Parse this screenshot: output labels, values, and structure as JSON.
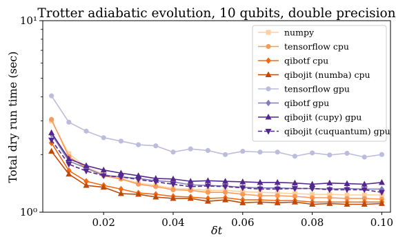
{
  "chart_data": {
    "type": "line",
    "title": "Trotter adiabatic evolution, 10 qubits, double precision",
    "xlabel": "δt",
    "ylabel": "Total dry run time (sec)",
    "xlim": [
      0.0025,
      0.1025
    ],
    "ylim": [
      1,
      10
    ],
    "yscale": "log",
    "grid": false,
    "legend_position": "top-right",
    "x_ticks": [
      0.02,
      0.04,
      0.06,
      0.08,
      0.1
    ],
    "x_tick_labels": [
      "0.02",
      "0.04",
      "0.06",
      "0.08",
      "0.10"
    ],
    "y_ticks": [
      1,
      10
    ],
    "y_tick_labels": [
      "10⁰",
      "10¹"
    ],
    "x": [
      0.005,
      0.01,
      0.015,
      0.02,
      0.025,
      0.03,
      0.035,
      0.04,
      0.045,
      0.05,
      0.055,
      0.06,
      0.065,
      0.07,
      0.075,
      0.08,
      0.085,
      0.09,
      0.095,
      0.1
    ],
    "series": [
      {
        "name": "numpy",
        "color": "#fdd0a2",
        "marker": "square",
        "dash": "solid",
        "values": [
          3.0,
          2.02,
          1.72,
          1.58,
          1.5,
          1.42,
          1.38,
          1.33,
          1.32,
          1.3,
          1.3,
          1.28,
          1.27,
          1.26,
          1.25,
          1.24,
          1.24,
          1.23,
          1.23,
          1.23
        ]
      },
      {
        "name": "tensorflow cpu",
        "color": "#fb9a58",
        "marker": "circle",
        "dash": "solid",
        "values": [
          3.05,
          1.95,
          1.7,
          1.55,
          1.49,
          1.4,
          1.36,
          1.31,
          1.3,
          1.27,
          1.27,
          1.24,
          1.22,
          1.22,
          1.21,
          1.19,
          1.19,
          1.18,
          1.18,
          1.17
        ]
      },
      {
        "name": "qibotf cpu",
        "color": "#f16913",
        "marker": "diamond",
        "dash": "solid",
        "values": [
          2.3,
          1.65,
          1.45,
          1.38,
          1.32,
          1.26,
          1.24,
          1.21,
          1.2,
          1.18,
          1.19,
          1.16,
          1.16,
          1.15,
          1.15,
          1.13,
          1.13,
          1.13,
          1.13,
          1.13
        ]
      },
      {
        "name": "qibojit (numba) cpu",
        "color": "#c14905",
        "marker": "triangle-up",
        "dash": "solid",
        "values": [
          2.08,
          1.58,
          1.38,
          1.35,
          1.25,
          1.24,
          1.2,
          1.18,
          1.18,
          1.14,
          1.16,
          1.12,
          1.13,
          1.12,
          1.13,
          1.1,
          1.11,
          1.1,
          1.1,
          1.11
        ]
      },
      {
        "name": "tensorflow gpu",
        "color": "#bcbddc",
        "marker": "circle",
        "dash": "solid",
        "values": [
          4.05,
          2.95,
          2.65,
          2.45,
          2.35,
          2.25,
          2.22,
          2.06,
          2.14,
          2.1,
          2.0,
          2.08,
          2.06,
          2.06,
          1.96,
          2.04,
          1.99,
          2.03,
          1.94,
          2.0
        ]
      },
      {
        "name": "qibotf gpu",
        "color": "#807dba",
        "marker": "diamond",
        "dash": "solid",
        "values": [
          2.55,
          1.85,
          1.7,
          1.56,
          1.53,
          1.5,
          1.46,
          1.44,
          1.39,
          1.38,
          1.37,
          1.35,
          1.34,
          1.34,
          1.33,
          1.33,
          1.32,
          1.33,
          1.32,
          1.32
        ]
      },
      {
        "name": "qibojit (cupy) gpu",
        "color": "#54278f",
        "marker": "triangle-up",
        "dash": "solid",
        "values": [
          2.6,
          1.9,
          1.75,
          1.66,
          1.6,
          1.55,
          1.5,
          1.49,
          1.45,
          1.46,
          1.45,
          1.44,
          1.43,
          1.43,
          1.42,
          1.4,
          1.42,
          1.41,
          1.4,
          1.43
        ]
      },
      {
        "name": "qibojit (cuquantum) gpu",
        "color": "#54278f",
        "marker": "triangle-down",
        "dash": "dashed",
        "values": [
          2.38,
          1.78,
          1.64,
          1.55,
          1.53,
          1.48,
          1.44,
          1.4,
          1.36,
          1.37,
          1.36,
          1.34,
          1.32,
          1.32,
          1.33,
          1.33,
          1.31,
          1.31,
          1.31,
          1.27
        ]
      }
    ]
  }
}
